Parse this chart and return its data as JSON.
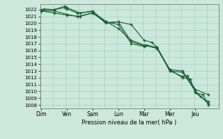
{
  "bg_color": "#cce8dc",
  "grid_color": "#99ccb8",
  "line_color": "#1a5c32",
  "xlabel_text": "Pression niveau de la mer( hPa )",
  "x_labels": [
    "Dim",
    "Ven",
    "Sam",
    "Lun",
    "Mar",
    "Mer",
    "Jeu"
  ],
  "x_tick_positions": [
    0,
    1,
    2,
    3,
    4,
    5,
    6
  ],
  "ylim": [
    1007.5,
    1022.8
  ],
  "yticks": [
    1008,
    1009,
    1010,
    1011,
    1012,
    1013,
    1014,
    1015,
    1016,
    1017,
    1018,
    1019,
    1020,
    1021,
    1022
  ],
  "xlim": [
    -0.05,
    6.9
  ],
  "lines": [
    {
      "x": [
        0.0,
        0.1,
        0.5,
        0.9,
        1.0,
        1.4,
        2.0,
        2.5,
        3.0,
        3.5,
        4.0,
        4.5,
        5.0,
        5.5,
        6.0,
        6.5
      ],
      "y": [
        1021.8,
        1022.1,
        1022.0,
        1022.3,
        1022.1,
        1021.5,
        1021.7,
        1020.3,
        1019.2,
        1017.5,
        1016.8,
        1016.3,
        1013.2,
        1013.0,
        1010.3,
        1009.5
      ]
    },
    {
      "x": [
        0.0,
        0.5,
        1.0,
        1.4,
        2.0,
        2.5,
        3.0,
        3.5,
        4.0,
        4.1,
        4.5,
        5.0,
        5.5,
        6.0,
        6.5
      ],
      "y": [
        1021.8,
        1021.8,
        1021.3,
        1021.0,
        1021.5,
        1020.2,
        1019.8,
        1017.0,
        1016.6,
        1016.8,
        1016.4,
        1013.0,
        1012.8,
        1010.0,
        1008.2
      ]
    },
    {
      "x": [
        0.0,
        0.5,
        0.9,
        1.0,
        1.5,
        2.0,
        2.5,
        3.0,
        3.5,
        4.0,
        4.3,
        4.5,
        5.0,
        5.5,
        5.8,
        6.0,
        6.3,
        6.5
      ],
      "y": [
        1022.0,
        1022.0,
        1022.5,
        1022.3,
        1021.5,
        1021.8,
        1020.0,
        1020.2,
        1019.8,
        1017.5,
        1017.2,
        1016.5,
        1013.2,
        1012.0,
        1011.8,
        1009.8,
        1009.5,
        1008.0
      ]
    },
    {
      "x": [
        0.0,
        0.5,
        1.0,
        1.5,
        2.0,
        2.5,
        3.0,
        3.5,
        4.0,
        4.5,
        5.0,
        5.5,
        5.7,
        6.0,
        6.2,
        6.5
      ],
      "y": [
        1021.8,
        1021.5,
        1021.2,
        1021.0,
        1021.5,
        1020.1,
        1020.2,
        1017.3,
        1016.7,
        1016.5,
        1013.0,
        1012.2,
        1012.3,
        1009.8,
        1009.2,
        1008.5
      ]
    }
  ]
}
